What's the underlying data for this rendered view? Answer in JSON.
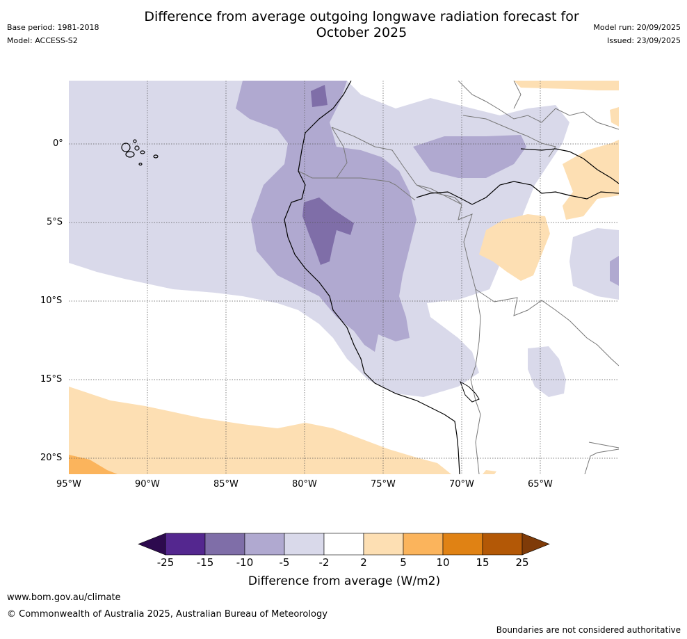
{
  "header": {
    "title_line1": "Difference from average outgoing longwave radiation forecast for",
    "title_line2": "October 2025",
    "base_period": "Base period: 1981-2018",
    "model": "Model: ACCESS-S2",
    "model_run": "Model run: 20/09/2025",
    "issued": "Issued: 23/09/2025"
  },
  "map": {
    "lat_labels": [
      "0°",
      "5°S",
      "10°S",
      "15°S",
      "20°S"
    ],
    "lon_labels": [
      "95°W",
      "90°W",
      "85°W",
      "80°W",
      "75°W",
      "70°W",
      "65°W"
    ],
    "region": "Western South America"
  },
  "colorbar": {
    "ticks": [
      "-25",
      "-15",
      "-10",
      "-5",
      "-2",
      "2",
      "5",
      "10",
      "15",
      "25"
    ],
    "colors": [
      "#2d0a4e",
      "#54278f",
      "#7f6ea8",
      "#b0a9d0",
      "#d9d9ea",
      "#ffffff",
      "#fddfb3",
      "#fbb45c",
      "#e08214",
      "#b35806",
      "#7f3b08"
    ],
    "label": "Difference from average (W/m2)"
  },
  "footer": {
    "url": "www.bom.gov.au/climate",
    "copyright": "© Commonwealth of Australia 2025, Australian Bureau of Meteorology",
    "disclaimer": "Boundaries are not considered authoritative"
  }
}
